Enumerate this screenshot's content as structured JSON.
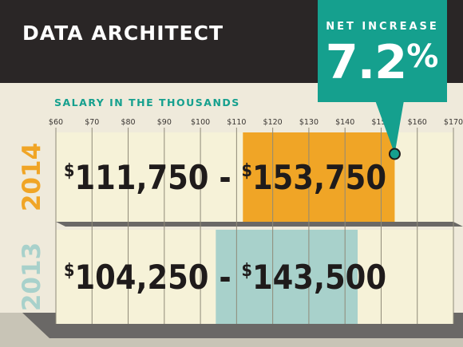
{
  "chart_data": {
    "type": "bar",
    "title": "DATA ARCHITECT",
    "subtitle": "SALARY IN THE THOUSANDS",
    "callout": {
      "label": "NET INCREASE",
      "value": "7.2",
      "unit": "%"
    },
    "x_ticks": [
      "$60",
      "$70",
      "$80",
      "$90",
      "$100",
      "$110",
      "$120",
      "$130",
      "$140",
      "$150",
      "$160",
      "$170"
    ],
    "x_tick_values": [
      60,
      70,
      80,
      90,
      100,
      110,
      120,
      130,
      140,
      150,
      160,
      170
    ],
    "xlim": [
      60,
      170
    ],
    "series": [
      {
        "name": "2014",
        "low": 111.75,
        "high": 153.75,
        "low_text": "111,750",
        "high_text": "153,750",
        "currency": "$",
        "separator": "-",
        "color": "#f0a526",
        "year_color": "#f0a526"
      },
      {
        "name": "2013",
        "low": 104.25,
        "high": 143.5,
        "low_text": "104,250",
        "high_text": "143,500",
        "currency": "$",
        "separator": "-",
        "color": "#a8d1cb",
        "year_color": "#a8d1cb"
      }
    ]
  },
  "colors": {
    "header_bg": "#2a2626",
    "callout_bg": "#15a08e",
    "row_bg": "#f6f2d8",
    "grid": "#8f8a78",
    "shadow": "#6a6866",
    "text_dark": "#1f1b1b"
  }
}
